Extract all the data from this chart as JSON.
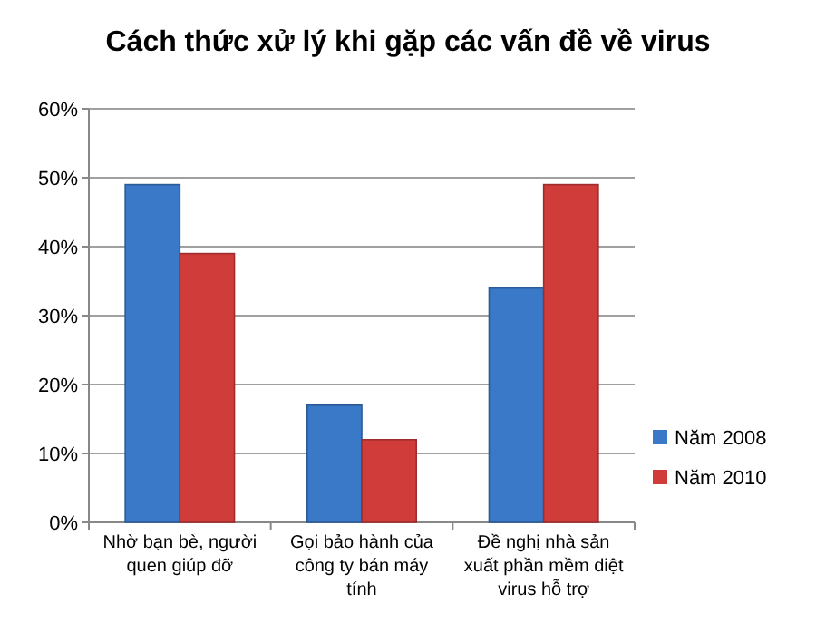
{
  "chart_data": {
    "type": "bar",
    "title": "Cách thức xử lý khi gặp các vấn đề về virus",
    "categories": [
      "Nhờ bạn bè, người quen giúp đỡ",
      "Gọi bảo hành của công ty bán máy tính",
      "Đề nghị nhà sản xuất phần mềm diệt virus hỗ trợ"
    ],
    "series": [
      {
        "name": "Năm 2008",
        "color": "#3a78c8",
        "values": [
          49,
          17,
          34
        ]
      },
      {
        "name": "Năm 2010",
        "color": "#d03c3a",
        "values": [
          39,
          12,
          49
        ]
      }
    ],
    "ylim": [
      0,
      60
    ],
    "yticks": [
      {
        "value": 0,
        "label": "0%"
      },
      {
        "value": 10,
        "label": "10%"
      },
      {
        "value": 20,
        "label": "20%"
      },
      {
        "value": 30,
        "label": "30%"
      },
      {
        "value": 40,
        "label": "40%"
      },
      {
        "value": 50,
        "label": "50%"
      },
      {
        "value": 60,
        "label": "60%"
      }
    ],
    "grid": "y",
    "legend": "right"
  }
}
